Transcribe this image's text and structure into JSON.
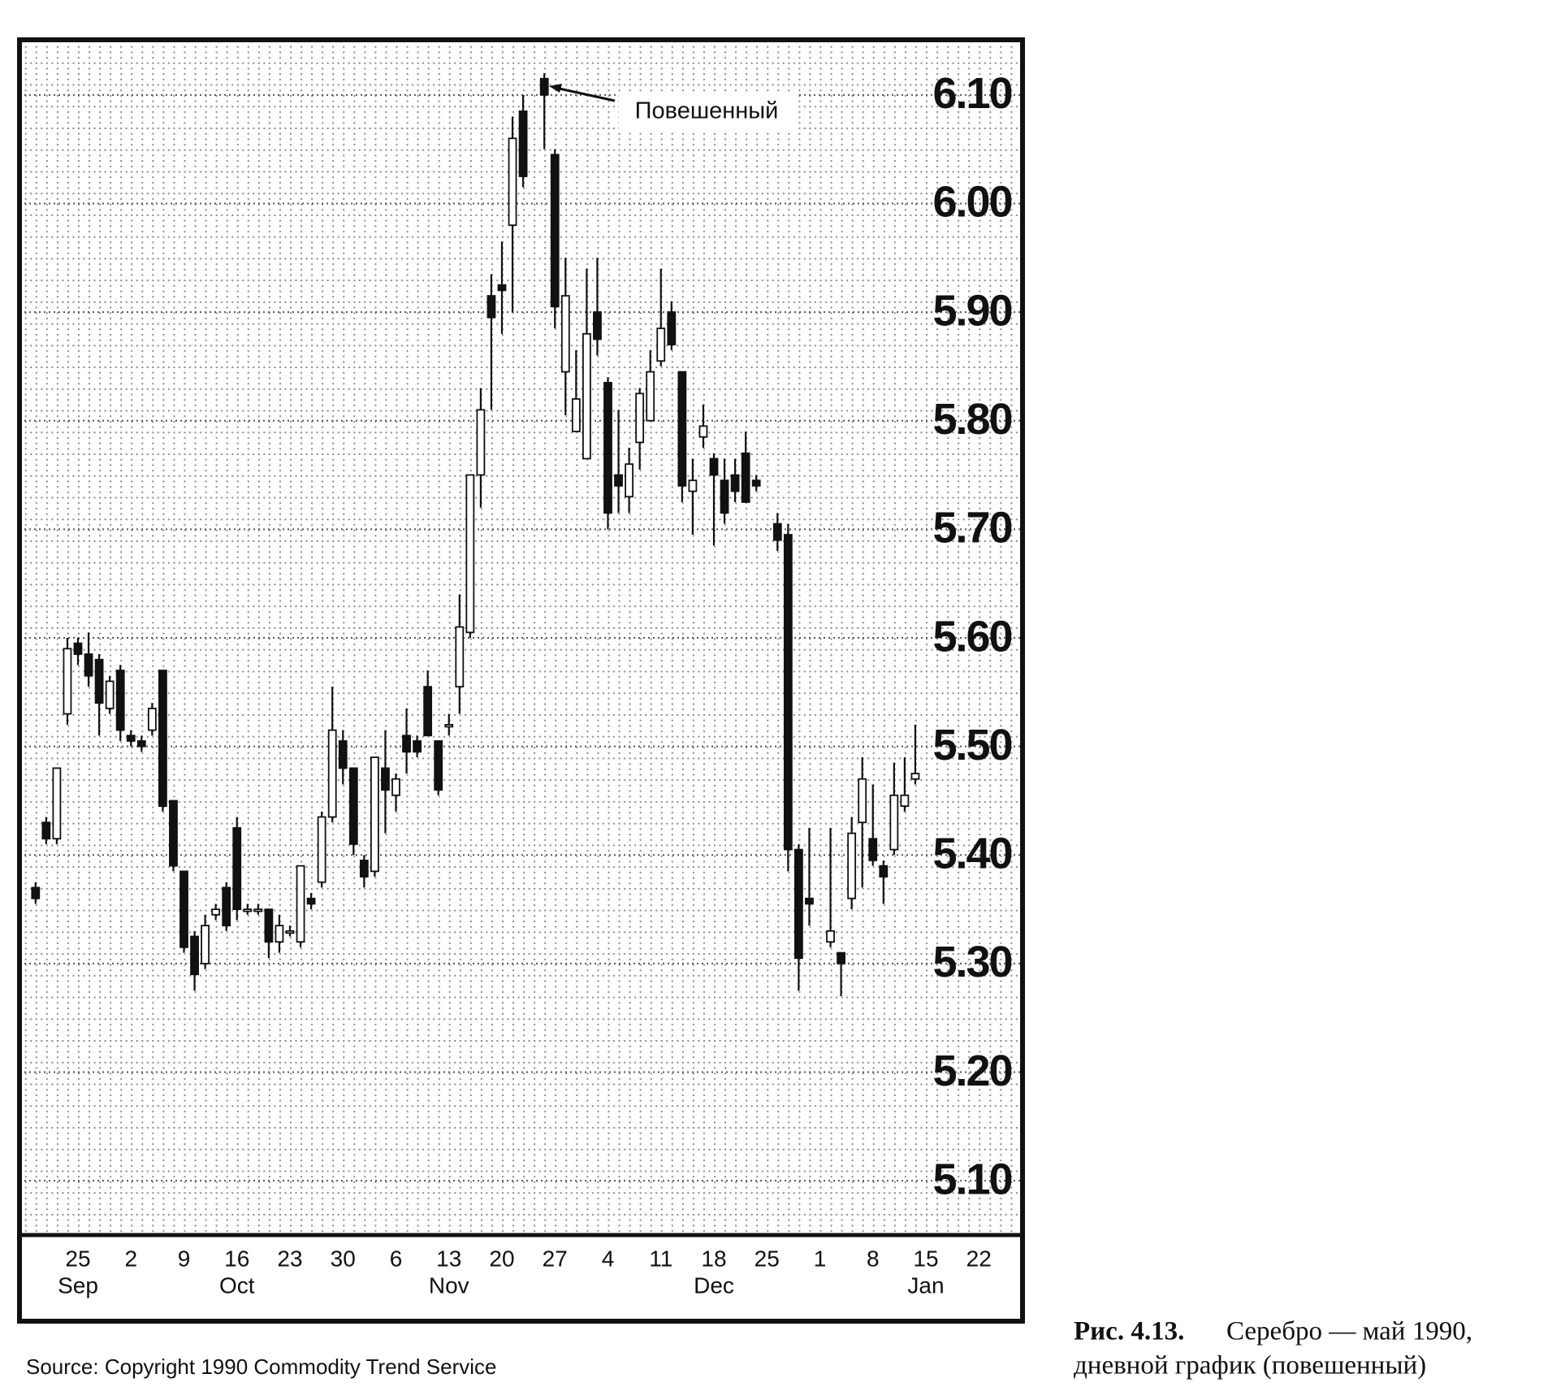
{
  "chart_data": {
    "type": "candlestick",
    "annotation": "Повешенный",
    "source": "Source: Copyright 1990 Commodity Trend Service",
    "caption": {
      "label": "Рис. 4.13.",
      "lines": [
        "Серебро — май 1990,",
        "дневной график (повешенный)"
      ]
    },
    "up_color": "#ffffff",
    "down_color": "#111111",
    "ylim": [
      5.05,
      6.15
    ],
    "yticks": [
      {
        "value": 5.1,
        "label": "5.10"
      },
      {
        "value": 5.2,
        "label": "5.20"
      },
      {
        "value": 5.3,
        "label": "5.30"
      },
      {
        "value": 5.4,
        "label": "5.40"
      },
      {
        "value": 5.5,
        "label": "5.50"
      },
      {
        "value": 5.6,
        "label": "5.60"
      },
      {
        "value": 5.7,
        "label": "5.70"
      },
      {
        "value": 5.8,
        "label": "5.80"
      },
      {
        "value": 5.9,
        "label": "5.90"
      },
      {
        "value": 6.0,
        "label": "6.00"
      },
      {
        "value": 6.1,
        "label": "6.10"
      }
    ],
    "grid": true,
    "categories": [
      null,
      null,
      null,
      null,
      "25",
      null,
      null,
      null,
      null,
      "2",
      null,
      null,
      null,
      null,
      "9",
      null,
      null,
      null,
      null,
      "16",
      null,
      null,
      null,
      null,
      "23",
      null,
      null,
      null,
      null,
      "30",
      null,
      null,
      null,
      null,
      "6",
      null,
      null,
      null,
      null,
      "13",
      null,
      null,
      null,
      null,
      "20",
      null,
      null,
      null,
      null,
      "27",
      null,
      null,
      null,
      null,
      "4",
      null,
      null,
      null,
      null,
      "11",
      null,
      null,
      null,
      null,
      "18",
      null,
      null,
      null,
      null,
      "25",
      null,
      null,
      null,
      null,
      "1",
      null,
      null,
      null,
      null,
      "8",
      null,
      null,
      null,
      null,
      "15",
      null,
      null,
      null,
      null,
      "22"
    ],
    "months": [
      null,
      null,
      null,
      null,
      "Sep",
      null,
      null,
      null,
      null,
      null,
      null,
      null,
      null,
      null,
      null,
      null,
      null,
      null,
      null,
      "Oct",
      null,
      null,
      null,
      null,
      null,
      null,
      null,
      null,
      null,
      null,
      null,
      null,
      null,
      null,
      null,
      null,
      null,
      null,
      null,
      "Nov",
      null,
      null,
      null,
      null,
      null,
      null,
      null,
      null,
      null,
      null,
      null,
      null,
      null,
      null,
      null,
      null,
      null,
      null,
      null,
      null,
      null,
      null,
      null,
      null,
      "Dec",
      null,
      null,
      null,
      null,
      null,
      null,
      null,
      null,
      null,
      null,
      null,
      null,
      null,
      null,
      null,
      null,
      null,
      null,
      null,
      "Jan",
      null,
      null,
      null,
      null,
      null
    ],
    "open": [
      5.37,
      5.43,
      5.415,
      5.53,
      5.595,
      5.585,
      5.58,
      5.535,
      5.57,
      5.51,
      5.505,
      5.515,
      5.57,
      5.45,
      5.385,
      5.325,
      5.3,
      5.345,
      5.37,
      5.425,
      5.35,
      5.35,
      5.35,
      5.32,
      5.33,
      5.32,
      5.36,
      5.375,
      5.435,
      5.505,
      5.48,
      5.395,
      5.385,
      5.48,
      5.455,
      5.51,
      5.505,
      5.555,
      5.505,
      5.52,
      5.555,
      5.605,
      5.75,
      5.915,
      5.925,
      5.98,
      6.085,
      null,
      6.115,
      6.045,
      5.845,
      5.79,
      5.765,
      5.9,
      5.835,
      5.75,
      5.73,
      5.78,
      5.8,
      5.855,
      5.9,
      5.845,
      5.735,
      5.785,
      5.765,
      5.745,
      5.75,
      5.77,
      5.745,
      null,
      5.705,
      5.695,
      5.405,
      5.36,
      null,
      5.32,
      5.31,
      5.36,
      5.43,
      5.415,
      5.39,
      5.405,
      5.445,
      5.47,
      null,
      null,
      null,
      null,
      null,
      null
    ],
    "high": [
      5.375,
      5.435,
      5.48,
      5.6,
      5.6,
      5.605,
      5.585,
      5.565,
      5.575,
      5.515,
      5.51,
      5.54,
      5.57,
      5.45,
      5.385,
      5.33,
      5.345,
      5.355,
      5.375,
      5.435,
      5.355,
      5.355,
      5.35,
      5.345,
      5.335,
      5.39,
      5.365,
      5.44,
      5.555,
      5.515,
      5.48,
      5.4,
      5.49,
      5.515,
      5.475,
      5.535,
      5.51,
      5.57,
      5.505,
      5.53,
      5.64,
      5.75,
      5.83,
      5.935,
      5.965,
      6.08,
      6.1,
      null,
      6.12,
      6.05,
      5.95,
      5.865,
      5.94,
      5.95,
      5.84,
      5.81,
      5.775,
      5.83,
      5.865,
      5.94,
      5.91,
      5.845,
      5.765,
      5.815,
      5.77,
      5.765,
      5.765,
      5.79,
      5.75,
      null,
      5.715,
      5.705,
      5.41,
      5.425,
      null,
      5.425,
      5.31,
      5.435,
      5.49,
      5.465,
      5.395,
      5.485,
      5.49,
      5.52,
      null,
      null,
      null,
      null,
      null,
      null
    ],
    "low": [
      5.355,
      5.41,
      5.41,
      5.52,
      5.575,
      5.555,
      5.51,
      5.53,
      5.505,
      5.5,
      5.495,
      5.51,
      5.44,
      5.385,
      5.31,
      5.275,
      5.295,
      5.34,
      5.33,
      5.34,
      5.345,
      5.345,
      5.305,
      5.31,
      5.325,
      5.315,
      5.35,
      5.37,
      5.43,
      5.465,
      5.4,
      5.37,
      5.38,
      5.42,
      5.44,
      5.475,
      5.49,
      5.51,
      5.455,
      5.51,
      5.53,
      5.6,
      5.72,
      5.81,
      5.88,
      5.9,
      6.015,
      null,
      6.05,
      5.885,
      5.805,
      5.79,
      5.765,
      5.86,
      5.7,
      5.715,
      5.715,
      5.755,
      5.8,
      5.85,
      5.865,
      5.725,
      5.695,
      5.775,
      5.685,
      5.705,
      5.725,
      5.725,
      5.735,
      null,
      5.68,
      5.385,
      5.275,
      5.335,
      null,
      5.315,
      5.27,
      5.35,
      5.37,
      5.39,
      5.355,
      5.4,
      5.44,
      5.465,
      null,
      null,
      null,
      null,
      null,
      null
    ],
    "close": [
      5.36,
      5.415,
      5.48,
      5.59,
      5.585,
      5.565,
      5.54,
      5.56,
      5.515,
      5.505,
      5.5,
      5.535,
      5.445,
      5.39,
      5.315,
      5.29,
      5.335,
      5.35,
      5.335,
      5.35,
      5.35,
      5.35,
      5.32,
      5.335,
      5.33,
      5.39,
      5.355,
      5.435,
      5.515,
      5.48,
      5.41,
      5.38,
      5.49,
      5.46,
      5.47,
      5.495,
      5.495,
      5.51,
      5.46,
      5.52,
      5.61,
      5.75,
      5.81,
      5.895,
      5.92,
      6.06,
      6.025,
      null,
      6.1,
      5.905,
      5.915,
      5.82,
      5.88,
      5.875,
      5.715,
      5.74,
      5.76,
      5.825,
      5.845,
      5.885,
      5.87,
      5.74,
      5.745,
      5.795,
      5.75,
      5.715,
      5.735,
      5.725,
      5.74,
      null,
      5.69,
      5.405,
      5.305,
      5.355,
      null,
      5.33,
      5.3,
      5.42,
      5.47,
      5.395,
      5.38,
      5.455,
      5.455,
      5.475,
      null,
      null,
      null,
      null,
      null,
      null
    ]
  }
}
